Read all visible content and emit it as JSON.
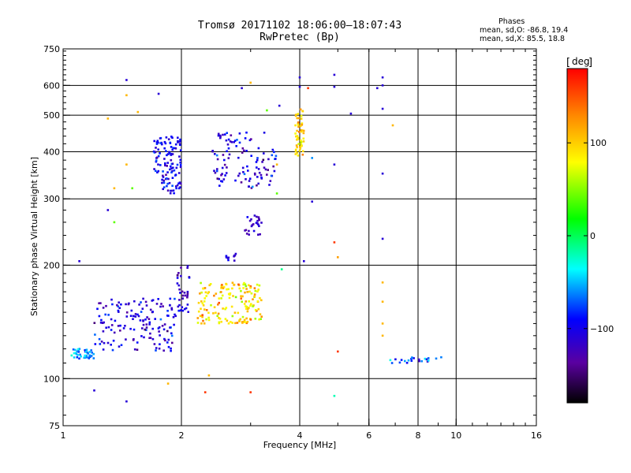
{
  "header": {
    "title": "Tromsø 20171102 18:06:00–18:07:43",
    "subtitle": "RwPretec (Bp)"
  },
  "stats": {
    "heading": "Phases",
    "line1": "mean, sd,O: -86.8, 19.4",
    "line2": "mean, sd,X:  85.5, 18.8"
  },
  "colorbar": {
    "label": "deg",
    "ticks": [
      {
        "value": 100,
        "label": "100"
      },
      {
        "value": 0,
        "label": "0"
      },
      {
        "value": -100,
        "label": "−100"
      }
    ],
    "range": [
      -180,
      180
    ]
  },
  "chart_data": {
    "type": "scatter",
    "title": "Tromsø 20171102 18:06:00–18:07:43",
    "subtitle": "RwPretec (Bp)",
    "xlabel": "Frequency [MHz]",
    "ylabel": "Stationary phase Virtual Height [km]",
    "xscale": "log",
    "yscale": "log",
    "xlim": [
      1,
      16
    ],
    "ylim": [
      75,
      750
    ],
    "xticks": [
      1,
      2,
      4,
      6,
      8,
      10,
      16
    ],
    "yticks": [
      75,
      100,
      200,
      300,
      400,
      500,
      600,
      750
    ],
    "grid_x": [
      2,
      4,
      6,
      8,
      10
    ],
    "grid_y": [
      100,
      200,
      300,
      400,
      500,
      600
    ],
    "legend": "colorbar right",
    "clusters": [
      {
        "x_range": [
          1.05,
          1.2
        ],
        "y_range": [
          113,
          120
        ],
        "n": 40,
        "phase_mean": -60,
        "phase_sd": 15
      },
      {
        "x_range": [
          1.2,
          1.95
        ],
        "y_range": [
          118,
          165
        ],
        "n": 150,
        "phase_mean": -105,
        "phase_sd": 18
      },
      {
        "x_range": [
          1.95,
          2.1
        ],
        "y_range": [
          150,
          200
        ],
        "n": 35,
        "phase_mean": -115,
        "phase_sd": 15
      },
      {
        "x_range": [
          2.2,
          3.2
        ],
        "y_range": [
          140,
          180
        ],
        "n": 160,
        "phase_mean": 95,
        "phase_sd": 25
      },
      {
        "x_range": [
          1.7,
          2.0
        ],
        "y_range": [
          310,
          440
        ],
        "n": 120,
        "phase_mean": -100,
        "phase_sd": 18
      },
      {
        "x_range": [
          2.4,
          3.5
        ],
        "y_range": [
          320,
          450
        ],
        "n": 110,
        "phase_mean": -110,
        "phase_sd": 20
      },
      {
        "x_range": [
          3.9,
          4.1
        ],
        "y_range": [
          390,
          520
        ],
        "n": 55,
        "phase_mean": 100,
        "phase_sd": 15
      },
      {
        "x_range": [
          2.9,
          3.2
        ],
        "y_range": [
          240,
          275
        ],
        "n": 25,
        "phase_mean": -115,
        "phase_sd": 12
      },
      {
        "x_range": [
          2.6,
          2.75
        ],
        "y_range": [
          205,
          215
        ],
        "n": 10,
        "phase_mean": -110,
        "phase_sd": 10
      },
      {
        "x_range": [
          6.8,
          9.3
        ],
        "y_range": [
          110,
          114
        ],
        "n": 22,
        "phase_mean": -70,
        "phase_sd": 25
      }
    ],
    "points": [
      {
        "x": 1.45,
        "y": 620,
        "phase": -110
      },
      {
        "x": 1.75,
        "y": 570,
        "phase": -110
      },
      {
        "x": 1.45,
        "y": 565,
        "phase": 110
      },
      {
        "x": 1.55,
        "y": 510,
        "phase": 110
      },
      {
        "x": 1.3,
        "y": 490,
        "phase": 110
      },
      {
        "x": 1.45,
        "y": 370,
        "phase": 110
      },
      {
        "x": 1.5,
        "y": 320,
        "phase": 40
      },
      {
        "x": 1.35,
        "y": 320,
        "phase": 110
      },
      {
        "x": 1.3,
        "y": 280,
        "phase": -110
      },
      {
        "x": 1.35,
        "y": 260,
        "phase": 40
      },
      {
        "x": 1.1,
        "y": 205,
        "phase": -110
      },
      {
        "x": 1.2,
        "y": 93,
        "phase": -110
      },
      {
        "x": 1.45,
        "y": 87,
        "phase": -110
      },
      {
        "x": 1.85,
        "y": 97,
        "phase": 110
      },
      {
        "x": 2.3,
        "y": 92,
        "phase": 160
      },
      {
        "x": 2.35,
        "y": 102,
        "phase": 110
      },
      {
        "x": 3.0,
        "y": 92,
        "phase": 160
      },
      {
        "x": 2.85,
        "y": 590,
        "phase": -110
      },
      {
        "x": 3.0,
        "y": 610,
        "phase": 110
      },
      {
        "x": 3.3,
        "y": 515,
        "phase": 40
      },
      {
        "x": 3.55,
        "y": 530,
        "phase": -110
      },
      {
        "x": 4.0,
        "y": 630,
        "phase": -110
      },
      {
        "x": 4.0,
        "y": 595,
        "phase": -110
      },
      {
        "x": 4.2,
        "y": 590,
        "phase": 160
      },
      {
        "x": 4.9,
        "y": 640,
        "phase": -110
      },
      {
        "x": 4.9,
        "y": 595,
        "phase": -110
      },
      {
        "x": 5.4,
        "y": 505,
        "phase": -110
      },
      {
        "x": 6.3,
        "y": 590,
        "phase": -110
      },
      {
        "x": 6.5,
        "y": 630,
        "phase": -110
      },
      {
        "x": 6.5,
        "y": 600,
        "phase": -110
      },
      {
        "x": 6.5,
        "y": 520,
        "phase": -110
      },
      {
        "x": 6.9,
        "y": 470,
        "phase": 110
      },
      {
        "x": 4.3,
        "y": 385,
        "phase": -60
      },
      {
        "x": 4.9,
        "y": 370,
        "phase": -110
      },
      {
        "x": 6.5,
        "y": 350,
        "phase": -110
      },
      {
        "x": 4.3,
        "y": 295,
        "phase": -110
      },
      {
        "x": 6.5,
        "y": 235,
        "phase": -110
      },
      {
        "x": 4.9,
        "y": 230,
        "phase": 160
      },
      {
        "x": 5.0,
        "y": 210,
        "phase": 120
      },
      {
        "x": 4.1,
        "y": 205,
        "phase": -110
      },
      {
        "x": 3.6,
        "y": 195,
        "phase": -10
      },
      {
        "x": 6.5,
        "y": 180,
        "phase": 110
      },
      {
        "x": 6.5,
        "y": 160,
        "phase": 110
      },
      {
        "x": 6.5,
        "y": 140,
        "phase": 110
      },
      {
        "x": 6.5,
        "y": 130,
        "phase": 110
      },
      {
        "x": 5.0,
        "y": 118,
        "phase": 160
      },
      {
        "x": 4.9,
        "y": 90,
        "phase": -20
      },
      {
        "x": 3.5,
        "y": 310,
        "phase": 40
      },
      {
        "x": 3.5,
        "y": 370,
        "phase": 110
      }
    ]
  }
}
